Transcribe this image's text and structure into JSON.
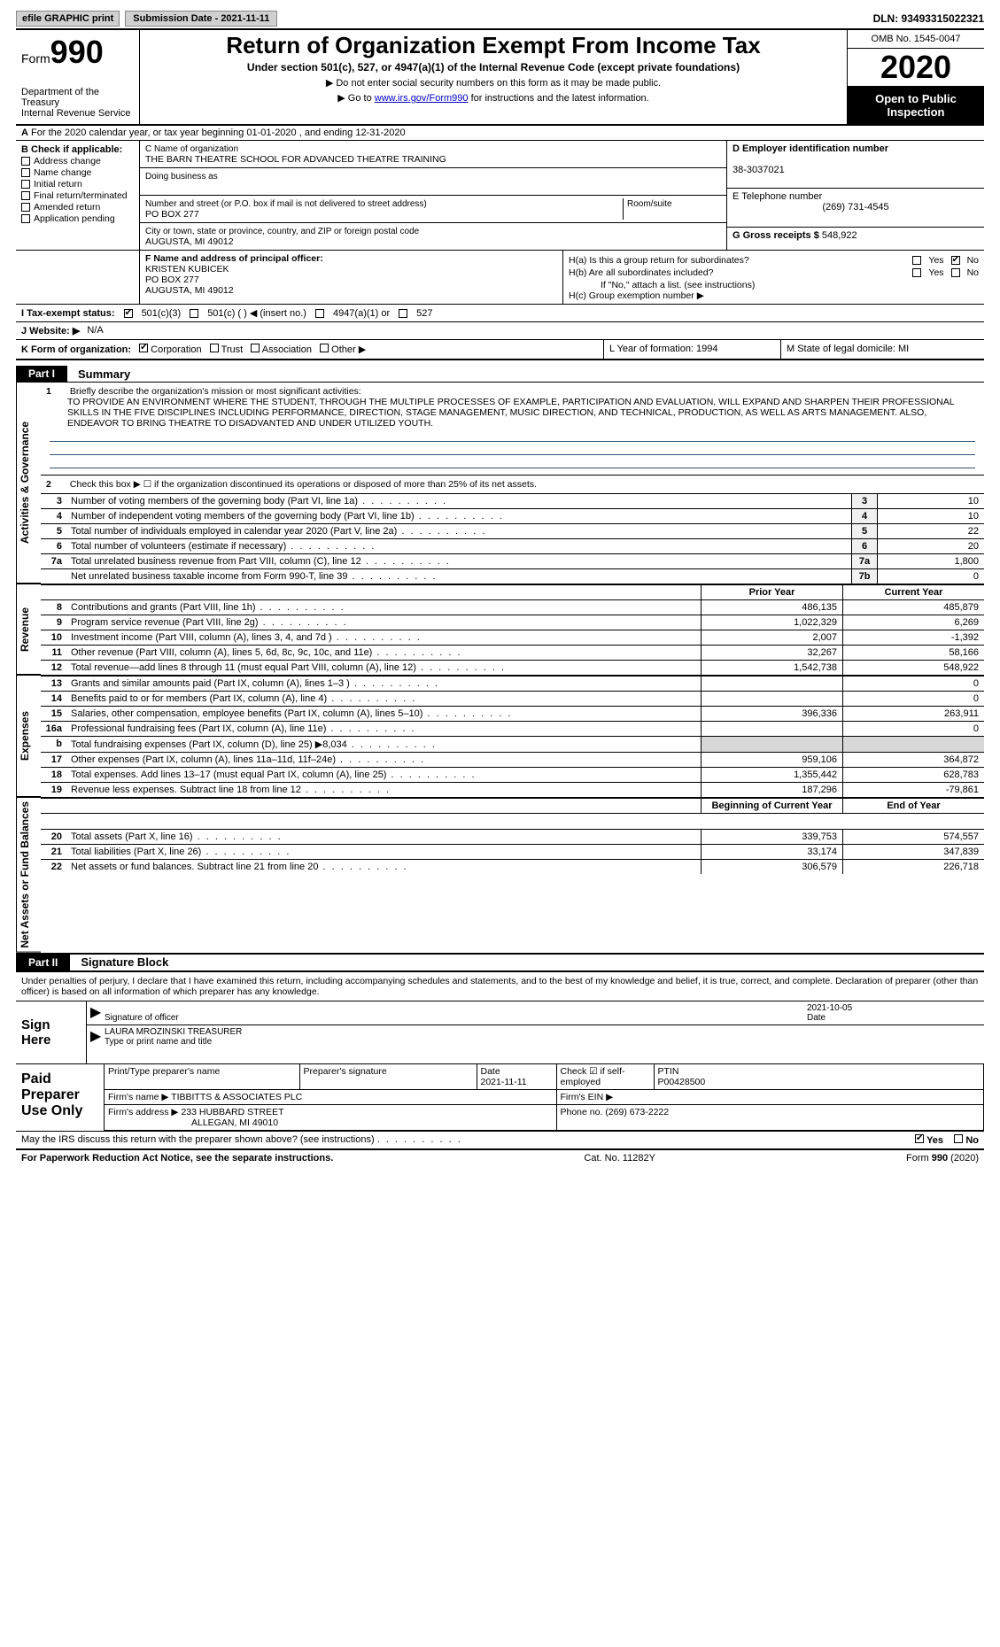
{
  "colors": {
    "black": "#000000",
    "link": "#0000cc",
    "grey_bg": "#f0f0f0",
    "dark_grey": "#d8d8d8"
  },
  "top": {
    "efile": "efile GRAPHIC print",
    "submission": "Submission Date - 2021-11-11",
    "dln": "DLN: 93493315022321"
  },
  "header": {
    "form_word": "Form",
    "form_num": "990",
    "dept": "Department of the Treasury\nInternal Revenue Service",
    "title": "Return of Organization Exempt From Income Tax",
    "subtitle": "Under section 501(c), 527, or 4947(a)(1) of the Internal Revenue Code (except private foundations)",
    "arrow1": "▶ Do not enter social security numbers on this form as it may be made public.",
    "arrow2_pre": "▶ Go to ",
    "arrow2_link": "www.irs.gov/Form990",
    "arrow2_post": " for instructions and the latest information.",
    "omb": "OMB No. 1545-0047",
    "year": "2020",
    "open": "Open to Public Inspection"
  },
  "row_a": {
    "label": "A",
    "text": "For the 2020 calendar year, or tax year beginning 01-01-2020    , and ending 12-31-2020"
  },
  "box_b": {
    "label": "B Check if applicable:",
    "items": [
      "Address change",
      "Name change",
      "Initial return",
      "Final return/terminated",
      "Amended return",
      "Application pending"
    ]
  },
  "box_c": {
    "name_label": "C Name of organization",
    "name": "THE BARN THEATRE SCHOOL FOR ADVANCED THEATRE TRAINING",
    "dba_label": "Doing business as",
    "addr_label": "Number and street (or P.O. box if mail is not delivered to street address)",
    "room_label": "Room/suite",
    "addr": "PO BOX 277",
    "city_label": "City or town, state or province, country, and ZIP or foreign postal code",
    "city": "AUGUSTA, MI  49012"
  },
  "box_d": {
    "label": "D Employer identification number",
    "value": "38-3037021"
  },
  "box_e": {
    "label": "E Telephone number",
    "value": "(269) 731-4545"
  },
  "box_g": {
    "label": "G Gross receipts $",
    "value": "548,922"
  },
  "box_f": {
    "label": "F  Name and address of principal officer:",
    "name": "KRISTEN KUBICEK",
    "addr1": "PO BOX 277",
    "addr2": "AUGUSTA, MI  49012"
  },
  "box_h": {
    "ha": "H(a)  Is this a group return for subordinates?",
    "hb": "H(b)  Are all subordinates included?",
    "hb_note": "If \"No,\" attach a list. (see instructions)",
    "hc": "H(c)  Group exemption number ▶",
    "yes": "Yes",
    "no": "No"
  },
  "row_i": {
    "label": "I   Tax-exempt status:",
    "opt1": "501(c)(3)",
    "opt2": "501(c) (   ) ◀ (insert no.)",
    "opt3": "4947(a)(1) or",
    "opt4": "527"
  },
  "row_j": {
    "label": "J   Website: ▶",
    "value": "N/A"
  },
  "row_k": {
    "label": "K Form of organization:",
    "opts": [
      "Corporation",
      "Trust",
      "Association",
      "Other ▶"
    ],
    "l": "L Year of formation: 1994",
    "m": "M State of legal domicile: MI"
  },
  "part1": {
    "tab": "Part I",
    "title": "Summary"
  },
  "section_labels": {
    "activities": "Activities & Governance",
    "revenue": "Revenue",
    "expenses": "Expenses",
    "netassets": "Net Assets or Fund Balances"
  },
  "mission": {
    "line1_label": "1",
    "line1_intro": "Briefly describe the organization's mission or most significant activities:",
    "text": "TO PROVIDE AN ENVIRONMENT WHERE THE STUDENT, THROUGH THE MULTIPLE PROCESSES OF EXAMPLE, PARTICIPATION AND EVALUATION, WILL EXPAND AND SHARPEN THEIR PROFESSIONAL SKILLS IN THE FIVE DISCIPLINES INCLUDING PERFORMANCE, DIRECTION, STAGE MANAGEMENT, MUSIC DIRECTION, AND TECHNICAL, PRODUCTION, AS WELL AS ARTS MANAGEMENT. ALSO, ENDEAVOR TO BRING THEATRE TO DISADVANTED AND UNDER UTILIZED YOUTH.",
    "line2": "Check this box ▶ ☐  if the organization discontinued its operations or disposed of more than 25% of its net assets."
  },
  "lines_simple": [
    {
      "n": "3",
      "t": "Number of voting members of the governing body (Part VI, line 1a)",
      "bn": "3",
      "v": "10"
    },
    {
      "n": "4",
      "t": "Number of independent voting members of the governing body (Part VI, line 1b)",
      "bn": "4",
      "v": "10"
    },
    {
      "n": "5",
      "t": "Total number of individuals employed in calendar year 2020 (Part V, line 2a)",
      "bn": "5",
      "v": "22"
    },
    {
      "n": "6",
      "t": "Total number of volunteers (estimate if necessary)",
      "bn": "6",
      "v": "20"
    },
    {
      "n": "7a",
      "t": "Total unrelated business revenue from Part VIII, column (C), line 12",
      "bn": "7a",
      "v": "1,800"
    },
    {
      "n": "",
      "t": "Net unrelated business taxable income from Form 990-T, line 39",
      "bn": "7b",
      "v": "0"
    }
  ],
  "col_headers": {
    "prior": "Prior Year",
    "current": "Current Year",
    "begin": "Beginning of Current Year",
    "end": "End of Year"
  },
  "revenue_rows": [
    {
      "n": "8",
      "t": "Contributions and grants (Part VIII, line 1h)",
      "p": "486,135",
      "c": "485,879"
    },
    {
      "n": "9",
      "t": "Program service revenue (Part VIII, line 2g)",
      "p": "1,022,329",
      "c": "6,269"
    },
    {
      "n": "10",
      "t": "Investment income (Part VIII, column (A), lines 3, 4, and 7d )",
      "p": "2,007",
      "c": "-1,392"
    },
    {
      "n": "11",
      "t": "Other revenue (Part VIII, column (A), lines 5, 6d, 8c, 9c, 10c, and 11e)",
      "p": "32,267",
      "c": "58,166"
    },
    {
      "n": "12",
      "t": "Total revenue—add lines 8 through 11 (must equal Part VIII, column (A), line 12)",
      "p": "1,542,738",
      "c": "548,922"
    }
  ],
  "expense_rows": [
    {
      "n": "13",
      "t": "Grants and similar amounts paid (Part IX, column (A), lines 1–3 )",
      "p": "",
      "c": "0"
    },
    {
      "n": "14",
      "t": "Benefits paid to or for members (Part IX, column (A), line 4)",
      "p": "",
      "c": "0"
    },
    {
      "n": "15",
      "t": "Salaries, other compensation, employee benefits (Part IX, column (A), lines 5–10)",
      "p": "396,336",
      "c": "263,911"
    },
    {
      "n": "16a",
      "t": "Professional fundraising fees (Part IX, column (A), line 11e)",
      "p": "",
      "c": "0"
    },
    {
      "n": "b",
      "t": "Total fundraising expenses (Part IX, column (D), line 25) ▶8,034",
      "p": "grey",
      "c": "grey"
    },
    {
      "n": "17",
      "t": "Other expenses (Part IX, column (A), lines 11a–11d, 11f–24e)",
      "p": "959,106",
      "c": "364,872"
    },
    {
      "n": "18",
      "t": "Total expenses. Add lines 13–17 (must equal Part IX, column (A), line 25)",
      "p": "1,355,442",
      "c": "628,783"
    },
    {
      "n": "19",
      "t": "Revenue less expenses. Subtract line 18 from line 12",
      "p": "187,296",
      "c": "-79,861"
    }
  ],
  "netasset_rows": [
    {
      "n": "20",
      "t": "Total assets (Part X, line 16)",
      "p": "339,753",
      "c": "574,557"
    },
    {
      "n": "21",
      "t": "Total liabilities (Part X, line 26)",
      "p": "33,174",
      "c": "347,839"
    },
    {
      "n": "22",
      "t": "Net assets or fund balances. Subtract line 21 from line 20",
      "p": "306,579",
      "c": "226,718"
    }
  ],
  "part2": {
    "tab": "Part II",
    "title": "Signature Block"
  },
  "sig": {
    "perjury": "Under penalties of perjury, I declare that I have examined this return, including accompanying schedules and statements, and to the best of my knowledge and belief, it is true, correct, and complete. Declaration of preparer (other than officer) is based on all information of which preparer has any knowledge.",
    "sign_here": "Sign Here",
    "sig_officer": "Signature of officer",
    "date_label": "Date",
    "date": "2021-10-05",
    "name": "LAURA MROZINSKI  TREASURER",
    "name_label": "Type or print name and title"
  },
  "prep": {
    "label": "Paid Preparer Use Only",
    "h1": "Print/Type preparer's name",
    "h2": "Preparer's signature",
    "h3": "Date",
    "h3v": "2021-11-11",
    "h4": "Check ☑ if self-employed",
    "h5": "PTIN",
    "h5v": "P00428500",
    "firm_name_l": "Firm's name    ▶",
    "firm_name": "TIBBITTS & ASSOCIATES PLC",
    "firm_ein_l": "Firm's EIN ▶",
    "firm_addr_l": "Firm's address ▶",
    "firm_addr1": "233 HUBBARD STREET",
    "firm_addr2": "ALLEGAN, MI  49010",
    "phone_l": "Phone no.",
    "phone": "(269) 673-2222"
  },
  "discuss": {
    "text": "May the IRS discuss this return with the preparer shown above? (see instructions)",
    "yes": "Yes",
    "no": "No"
  },
  "footer": {
    "left": "For Paperwork Reduction Act Notice, see the separate instructions.",
    "mid": "Cat. No. 11282Y",
    "right": "Form 990 (2020)"
  }
}
